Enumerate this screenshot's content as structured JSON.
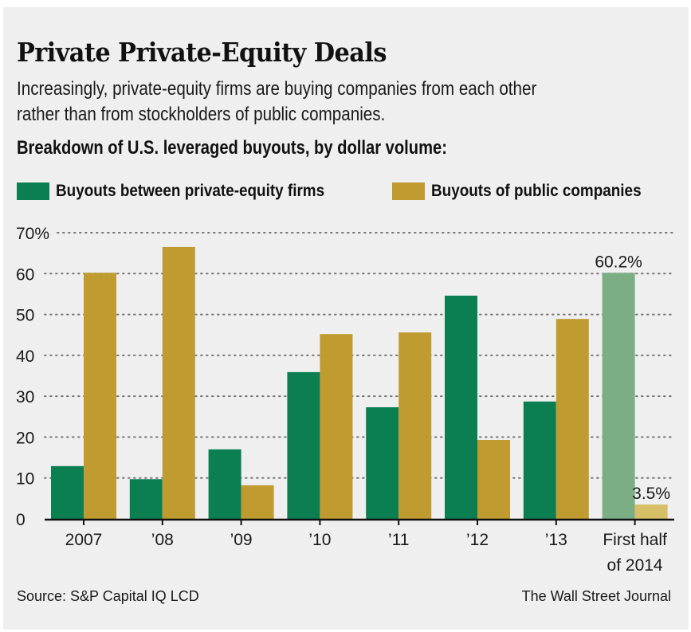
{
  "header": {
    "title": "Private Private-Equity Deals",
    "subtitle_lines": [
      "Increasingly, private-equity firms are buying companies from each other",
      "rather than from stockholders of public companies."
    ],
    "breakdown": "Breakdown of U.S. leveraged buyouts, by dollar volume:"
  },
  "footer": {
    "source": "Source: S&P Capital IQ LCD",
    "credit": "The Wall Street Journal"
  },
  "colors": {
    "pe": "#0b7f52",
    "public": "#bf9b30",
    "pe_highlight": "#7cae86",
    "public_highlight": "#d7bf68",
    "background": "#efefef",
    "grid": "#777777",
    "axis": "#111111"
  },
  "chart_data": {
    "type": "bar",
    "title": "Private Private-Equity Deals",
    "xlabel": "",
    "ylabel": "",
    "ylim": [
      0,
      70
    ],
    "yticks": [
      0,
      10,
      20,
      30,
      40,
      50,
      60,
      70
    ],
    "ytick_labels": [
      "0",
      "10",
      "20",
      "30",
      "40",
      "50",
      "60",
      "70%"
    ],
    "grid": true,
    "legend_position": "top",
    "categories": [
      "2007",
      "'08",
      "'09",
      "'10",
      "'11",
      "'12",
      "'13",
      "First half of 2014"
    ],
    "category_labels": [
      [
        "2007"
      ],
      [
        "’08"
      ],
      [
        "’09"
      ],
      [
        "’10"
      ],
      [
        "’11"
      ],
      [
        "’12"
      ],
      [
        "’13"
      ],
      [
        "First half",
        "of 2014"
      ]
    ],
    "highlight_index": 7,
    "series": [
      {
        "name": "Buyouts between private-equity firms",
        "key": "pe",
        "values": [
          12.9,
          9.7,
          17.0,
          35.9,
          27.3,
          54.6,
          28.7,
          60.2
        ]
      },
      {
        "name": "Buyouts of public companies",
        "key": "public",
        "values": [
          60.2,
          66.5,
          8.2,
          45.2,
          45.6,
          19.3,
          48.9,
          3.5
        ]
      }
    ],
    "annotations": [
      {
        "series": "pe",
        "index": 7,
        "text": "60.2%"
      },
      {
        "series": "public",
        "index": 7,
        "text": "3.5%"
      }
    ]
  }
}
